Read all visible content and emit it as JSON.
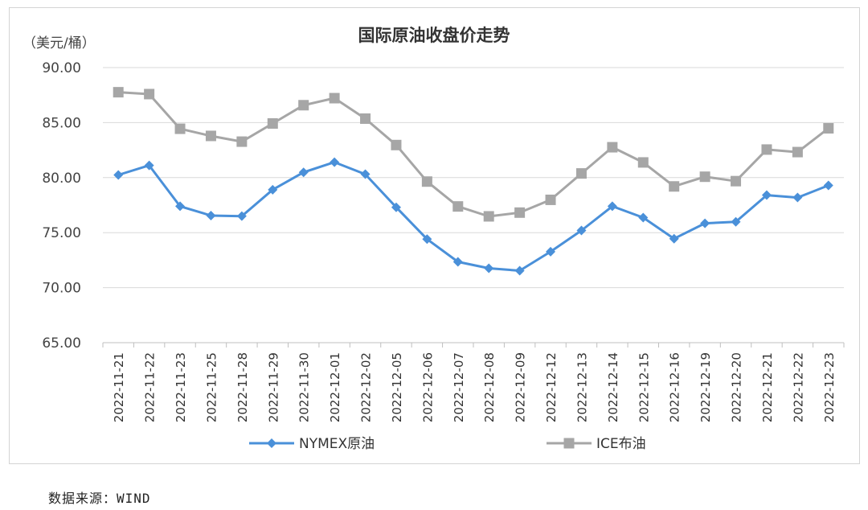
{
  "chart_data": {
    "type": "line",
    "title": "国际原油收盘价走势",
    "unit_label": "（美元/桶）",
    "ylim": [
      65,
      90
    ],
    "yticks": [
      "65.00",
      "70.00",
      "75.00",
      "80.00",
      "85.00",
      "90.00"
    ],
    "grid": true,
    "legend_position": "bottom",
    "categories": [
      "2022-11-21",
      "2022-11-22",
      "2022-11-23",
      "2022-11-25",
      "2022-11-28",
      "2022-11-29",
      "2022-11-30",
      "2022-12-01",
      "2022-12-02",
      "2022-12-05",
      "2022-12-06",
      "2022-12-07",
      "2022-12-08",
      "2022-12-09",
      "2022-12-12",
      "2022-12-13",
      "2022-12-14",
      "2022-12-15",
      "2022-12-16",
      "2022-12-19",
      "2022-12-20",
      "2022-12-21",
      "2022-12-22",
      "2022-12-23"
    ],
    "series": [
      {
        "name": "NYMEX原油",
        "color": "#4a90d9",
        "marker": "diamond",
        "values": [
          80.24,
          81.11,
          77.4,
          76.55,
          76.5,
          78.9,
          80.48,
          81.4,
          80.31,
          77.3,
          74.41,
          72.35,
          71.76,
          71.54,
          73.27,
          75.2,
          77.4,
          76.37,
          74.45,
          75.85,
          75.98,
          78.41,
          78.19,
          79.29
        ]
      },
      {
        "name": "ICE布油",
        "color": "#a6a6a6",
        "marker": "square",
        "values": [
          87.76,
          87.59,
          84.44,
          83.79,
          83.27,
          84.92,
          86.58,
          87.22,
          85.36,
          82.96,
          79.64,
          77.38,
          76.48,
          76.82,
          77.98,
          80.38,
          82.76,
          81.38,
          79.2,
          80.08,
          79.68,
          82.55,
          82.32,
          84.48
        ]
      }
    ]
  },
  "footer": {
    "source": "数据来源：WIND"
  }
}
